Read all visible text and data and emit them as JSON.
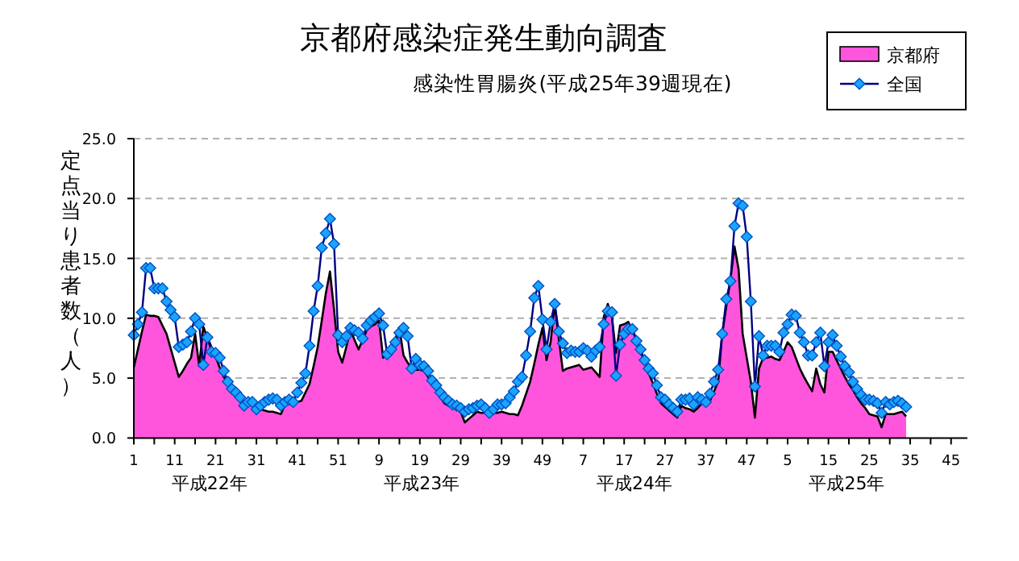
{
  "chart_data": {
    "type": "line",
    "title": "京都府感染症発生動向調査",
    "subtitle": "感染性胃腸炎(平成25年39週現在)",
    "ylabel": "定点当り患者数（人）",
    "annotations": [
      "平成22年",
      "平成23年",
      "平成24年",
      "平成25年"
    ],
    "categories": [
      "1",
      null,
      null,
      null,
      null,
      null,
      null,
      null,
      null,
      null,
      "11",
      null,
      null,
      null,
      null,
      null,
      null,
      null,
      null,
      null,
      "21",
      null,
      null,
      null,
      null,
      null,
      null,
      null,
      null,
      null,
      "31",
      null,
      null,
      null,
      null,
      null,
      null,
      null,
      null,
      null,
      "41",
      null,
      null,
      null,
      null,
      null,
      null,
      null,
      null,
      null,
      "51",
      null,
      null,
      null,
      null,
      null,
      null,
      null,
      null,
      null,
      "9",
      null,
      null,
      null,
      null,
      null,
      null,
      null,
      null,
      null,
      "19",
      null,
      null,
      null,
      null,
      null,
      null,
      null,
      null,
      null,
      "29",
      null,
      null,
      null,
      null,
      null,
      null,
      null,
      null,
      null,
      "39",
      null,
      null,
      null,
      null,
      null,
      null,
      null,
      null,
      null,
      "49",
      null,
      null,
      null,
      null,
      null,
      null,
      null,
      null,
      null,
      "7",
      null,
      null,
      null,
      null,
      null,
      null,
      null,
      null,
      null,
      "17",
      null,
      null,
      null,
      null,
      null,
      null,
      null,
      null,
      null,
      "27",
      null,
      null,
      null,
      null,
      null,
      null,
      null,
      null,
      null,
      "37",
      null,
      null,
      null,
      null,
      null,
      null,
      null,
      null,
      null,
      "47",
      null,
      null,
      null,
      null,
      null,
      null,
      null,
      null,
      null,
      "5",
      null,
      null,
      null,
      null,
      null,
      null,
      null,
      null,
      null,
      "15",
      null,
      null,
      null,
      null,
      null,
      null,
      null,
      null,
      null,
      "25",
      null,
      null,
      null,
      null,
      null,
      null,
      null,
      null,
      null,
      "35",
      null,
      null,
      null,
      null,
      null,
      null,
      null,
      null,
      null,
      "45",
      null,
      null,
      null,
      null
    ],
    "ylim": [
      0,
      25
    ],
    "yticks": [
      {
        "value": 0,
        "label": "0.0"
      },
      {
        "value": 5,
        "label": "5.0"
      },
      {
        "value": 10,
        "label": "10.0"
      },
      {
        "value": 15,
        "label": "15.0"
      },
      {
        "value": 20,
        "label": "20.0"
      },
      {
        "value": 25,
        "label": "25.0"
      }
    ],
    "grid": "y",
    "legend": "top right",
    "series": [
      {
        "name": "京都府",
        "type": "area",
        "color": "#ff55dd",
        "values": [
          5.9,
          7.4,
          8.9,
          10.3,
          10.2,
          10.2,
          10.1,
          9.4,
          8.7,
          7.5,
          6.3,
          5.1,
          5.6,
          6.2,
          6.7,
          8.7,
          6.0,
          9.3,
          8.4,
          7.6,
          6.8,
          5.9,
          5.1,
          4.6,
          4.1,
          3.6,
          3.1,
          3.0,
          2.8,
          2.7,
          2.5,
          2.4,
          2.3,
          2.2,
          2.2,
          2.1,
          2.0,
          2.8,
          2.9,
          3.0,
          3.0,
          3.1,
          3.8,
          4.5,
          6.0,
          7.6,
          9.8,
          12.1,
          13.9,
          10.7,
          7.2,
          6.3,
          7.6,
          9.0,
          8.2,
          7.4,
          8.2,
          9.0,
          9.3,
          9.5,
          9.8,
          6.7,
          7.2,
          7.8,
          8.3,
          9.2,
          6.9,
          6.3,
          5.8,
          5.7,
          5.7,
          5.6,
          5.1,
          4.5,
          4.0,
          3.4,
          2.9,
          2.7,
          2.5,
          2.4,
          2.2,
          1.3,
          1.6,
          1.9,
          2.2,
          2.1,
          2.1,
          2.0,
          2.1,
          2.1,
          2.2,
          2.1,
          2.0,
          2.0,
          1.9,
          2.7,
          3.7,
          4.7,
          6.2,
          7.8,
          9.2,
          6.5,
          8.0,
          11.2,
          8.3,
          5.6,
          5.8,
          5.9,
          6.0,
          6.1,
          5.7,
          5.8,
          5.9,
          5.5,
          5.1,
          10.1,
          11.2,
          10.1,
          7.1,
          9.4,
          9.5,
          9.7,
          9.0,
          8.3,
          7.3,
          6.3,
          5.4,
          4.6,
          3.7,
          2.9,
          2.6,
          2.3,
          2.0,
          1.7,
          2.7,
          2.5,
          2.4,
          2.2,
          2.5,
          2.9,
          3.0,
          3.1,
          3.9,
          4.7,
          8.7,
          11.0,
          13.2,
          16.0,
          14.1,
          8.7,
          6.7,
          4.7,
          1.7,
          5.8,
          6.7,
          6.7,
          6.8,
          6.6,
          6.5,
          7.2,
          8.0,
          7.6,
          6.7,
          5.8,
          5.1,
          4.5,
          3.9,
          5.8,
          4.5,
          3.8,
          7.2,
          7.2,
          6.5,
          5.8,
          5.1,
          4.5,
          4.0,
          3.4,
          2.9,
          2.5,
          2.0,
          1.9,
          1.8,
          0.9,
          2.0,
          2.0,
          2.0,
          2.1,
          2.2,
          1.8,
          null,
          null,
          null,
          null,
          null,
          null,
          null,
          null,
          null,
          null,
          null,
          null,
          null,
          null,
          null
        ]
      },
      {
        "name": "全国",
        "type": "line",
        "color": "#1aa3ff",
        "marker": "diamond",
        "values": [
          8.6,
          9.5,
          10.5,
          14.2,
          14.2,
          12.5,
          12.5,
          12.5,
          11.4,
          10.7,
          10.1,
          7.6,
          7.8,
          8.0,
          8.9,
          10.0,
          9.5,
          6.1,
          8.4,
          7.2,
          7.1,
          6.7,
          5.6,
          4.7,
          4.1,
          3.8,
          3.4,
          2.7,
          3.0,
          3.0,
          2.4,
          2.7,
          3.0,
          3.2,
          3.3,
          3.2,
          2.7,
          3.0,
          3.2,
          3.0,
          3.8,
          4.6,
          5.4,
          7.7,
          10.6,
          12.7,
          15.9,
          17.1,
          18.3,
          16.2,
          8.6,
          8.0,
          8.5,
          9.2,
          9.0,
          8.8,
          8.3,
          9.4,
          9.8,
          10.1,
          10.4,
          9.4,
          7.0,
          7.4,
          8.0,
          8.8,
          9.2,
          8.5,
          5.8,
          6.6,
          6.1,
          6.0,
          5.6,
          4.8,
          4.4,
          3.8,
          3.4,
          3.1,
          2.8,
          2.7,
          2.5,
          2.2,
          2.4,
          2.5,
          2.7,
          2.8,
          2.5,
          2.1,
          2.4,
          2.8,
          2.8,
          2.9,
          3.4,
          3.9,
          4.7,
          5.1,
          6.9,
          8.9,
          11.7,
          12.7,
          9.9,
          7.4,
          9.7,
          11.2,
          8.9,
          7.9,
          7.1,
          7.3,
          7.2,
          7.2,
          7.5,
          7.3,
          6.8,
          7.3,
          7.6,
          9.5,
          10.6,
          10.5,
          5.2,
          7.8,
          8.7,
          9.1,
          9.1,
          8.1,
          7.4,
          6.5,
          5.8,
          5.4,
          4.4,
          3.4,
          3.2,
          2.8,
          2.5,
          2.2,
          3.2,
          3.2,
          3.3,
          2.8,
          3.4,
          3.2,
          3.0,
          3.7,
          4.7,
          5.7,
          8.7,
          11.6,
          13.1,
          17.7,
          19.6,
          19.4,
          16.8,
          11.4,
          4.3,
          8.5,
          6.9,
          7.7,
          7.7,
          7.7,
          7.2,
          8.8,
          9.5,
          10.3,
          10.2,
          8.8,
          8.0,
          6.9,
          6.9,
          8.0,
          8.8,
          6.0,
          8.0,
          8.6,
          7.7,
          6.8,
          6.0,
          5.5,
          4.7,
          4.1,
          3.6,
          3.2,
          3.2,
          3.1,
          2.9,
          2.1,
          3.0,
          2.8,
          3.0,
          3.1,
          2.9,
          2.6,
          null,
          null,
          null,
          null,
          null,
          null,
          null,
          null,
          null,
          null,
          null,
          null,
          null,
          null,
          null
        ]
      }
    ]
  }
}
